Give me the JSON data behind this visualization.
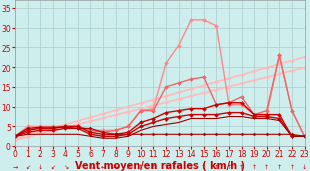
{
  "background_color": "#ceeeed",
  "grid_color": "#aacccc",
  "xlabel": "Vent moyen/en rafales ( km/h )",
  "xlabel_color": "#cc0000",
  "xlim": [
    0,
    23
  ],
  "ylim": [
    0,
    37
  ],
  "yticks": [
    0,
    5,
    10,
    15,
    20,
    25,
    30,
    35
  ],
  "xticks": [
    0,
    1,
    2,
    3,
    4,
    5,
    6,
    7,
    8,
    9,
    10,
    11,
    12,
    13,
    14,
    15,
    16,
    17,
    18,
    19,
    20,
    21,
    22,
    23
  ],
  "series": [
    {
      "comment": "top light pink straight line - linear ~2 to 23",
      "x": [
        0,
        1,
        2,
        3,
        4,
        5,
        6,
        7,
        8,
        9,
        10,
        11,
        12,
        13,
        14,
        15,
        16,
        17,
        18,
        19,
        20,
        21,
        22,
        23
      ],
      "y": [
        2.0,
        2.9,
        3.8,
        4.7,
        5.5,
        6.4,
        7.3,
        8.2,
        9.1,
        10.0,
        10.9,
        11.8,
        12.7,
        13.6,
        14.5,
        15.4,
        16.3,
        17.2,
        18.1,
        19.0,
        19.9,
        20.8,
        21.7,
        22.6
      ],
      "color": "#ffbbbb",
      "lw": 1.2,
      "marker": "D",
      "ms": 2.0
    },
    {
      "comment": "second light pink straight line - linear ~2 to 21",
      "x": [
        0,
        1,
        2,
        3,
        4,
        5,
        6,
        7,
        8,
        9,
        10,
        11,
        12,
        13,
        14,
        15,
        16,
        17,
        18,
        19,
        20,
        21,
        22,
        23
      ],
      "y": [
        1.5,
        2.3,
        3.1,
        3.9,
        4.7,
        5.5,
        6.3,
        7.1,
        7.9,
        8.7,
        9.5,
        10.3,
        11.1,
        11.9,
        12.7,
        13.5,
        14.3,
        15.1,
        15.9,
        16.7,
        17.5,
        18.3,
        19.1,
        19.9
      ],
      "color": "#ffbbbb",
      "lw": 1.2,
      "marker": "D",
      "ms": 2.0
    },
    {
      "comment": "bright pink line with big peak at x=15 ~32, then drops to ~8 at end",
      "x": [
        0,
        1,
        2,
        3,
        4,
        5,
        6,
        7,
        8,
        9,
        10,
        11,
        12,
        13,
        14,
        15,
        16,
        17,
        18,
        19,
        20,
        21,
        22,
        23
      ],
      "y": [
        2.5,
        5,
        5,
        5,
        5,
        5,
        4,
        4,
        4,
        5,
        9,
        9.5,
        21,
        25.5,
        32,
        32,
        30.5,
        10.5,
        10.5,
        8,
        8,
        23,
        9,
        2.5
      ],
      "color": "#ff8888",
      "lw": 1.0,
      "marker": "D",
      "ms": 2.0
    },
    {
      "comment": "medium pink curved line - peaks ~23 at x=21, then drops to 8",
      "x": [
        0,
        1,
        2,
        3,
        4,
        5,
        6,
        7,
        8,
        9,
        10,
        11,
        12,
        13,
        14,
        15,
        16,
        17,
        18,
        19,
        20,
        21,
        22,
        23
      ],
      "y": [
        2.5,
        4.5,
        4.5,
        4.5,
        5,
        5,
        4,
        3.5,
        4,
        5,
        9,
        9,
        15,
        16,
        17,
        17.5,
        10.5,
        11,
        12.5,
        8,
        9,
        23,
        9,
        2.5
      ],
      "color": "#ee6666",
      "lw": 1.0,
      "marker": "D",
      "ms": 2.0
    },
    {
      "comment": "dark red line - moderate, peaks ~11 at x=18",
      "x": [
        0,
        1,
        2,
        3,
        4,
        5,
        6,
        7,
        8,
        9,
        10,
        11,
        12,
        13,
        14,
        15,
        16,
        17,
        18,
        19,
        20,
        21,
        22,
        23
      ],
      "y": [
        2.5,
        4,
        4.5,
        4.5,
        5,
        5,
        3.5,
        3,
        3,
        3.5,
        6,
        7,
        8.5,
        9,
        9.5,
        9.5,
        10.5,
        11,
        11,
        8,
        8,
        8,
        2.5,
        2.5
      ],
      "color": "#cc0000",
      "lw": 1.0,
      "marker": "D",
      "ms": 2.0
    },
    {
      "comment": "dark red line - lower",
      "x": [
        0,
        1,
        2,
        3,
        4,
        5,
        6,
        7,
        8,
        9,
        10,
        11,
        12,
        13,
        14,
        15,
        16,
        17,
        18,
        19,
        20,
        21,
        22,
        23
      ],
      "y": [
        2.5,
        3.5,
        4,
        4,
        4.5,
        4.5,
        3,
        2.5,
        2.5,
        3,
        5,
        6,
        7,
        7.5,
        8,
        8,
        8,
        8.5,
        8.5,
        7.5,
        7.5,
        7,
        2.5,
        2.5
      ],
      "color": "#cc0000",
      "lw": 1.0,
      "marker": "D",
      "ms": 2.0
    },
    {
      "comment": "darkest red line - bottom, nearly flat ~2-3",
      "x": [
        0,
        1,
        2,
        3,
        4,
        5,
        6,
        7,
        8,
        9,
        10,
        11,
        12,
        13,
        14,
        15,
        16,
        17,
        18,
        19,
        20,
        21,
        22,
        23
      ],
      "y": [
        2.5,
        3,
        3,
        3,
        3,
        3,
        2.5,
        2,
        2,
        2.5,
        4,
        5,
        5.5,
        6,
        7,
        7,
        7,
        7.5,
        7.5,
        7,
        7,
        6.5,
        2.5,
        2.5
      ],
      "color": "#990000",
      "lw": 0.8,
      "marker": null,
      "ms": 0
    },
    {
      "comment": "very bottom flat dark red line ~2-3",
      "x": [
        0,
        1,
        2,
        3,
        4,
        5,
        6,
        7,
        8,
        9,
        10,
        11,
        12,
        13,
        14,
        15,
        16,
        17,
        18,
        19,
        20,
        21,
        22,
        23
      ],
      "y": [
        2.5,
        4.5,
        4.8,
        4.8,
        4.8,
        4.5,
        4.5,
        3.5,
        3,
        3,
        3,
        3,
        3,
        3,
        3,
        3,
        3,
        3,
        3,
        3,
        3,
        3,
        3,
        2.5
      ],
      "color": "#aa0000",
      "lw": 0.8,
      "marker": "D",
      "ms": 1.5
    }
  ],
  "arrow_chars": [
    "→",
    "↙",
    "↓",
    "↙",
    "↘",
    "↙",
    "↖",
    "←",
    "→",
    "↗",
    "↑",
    "↑",
    "↑",
    "↑",
    "↑",
    "↑",
    "↑",
    "↑",
    "↑",
    "↑",
    "↑",
    "↑",
    "↑",
    "↓"
  ],
  "tick_fontsize": 5.5,
  "label_fontsize": 7,
  "tick_color": "#cc0000"
}
